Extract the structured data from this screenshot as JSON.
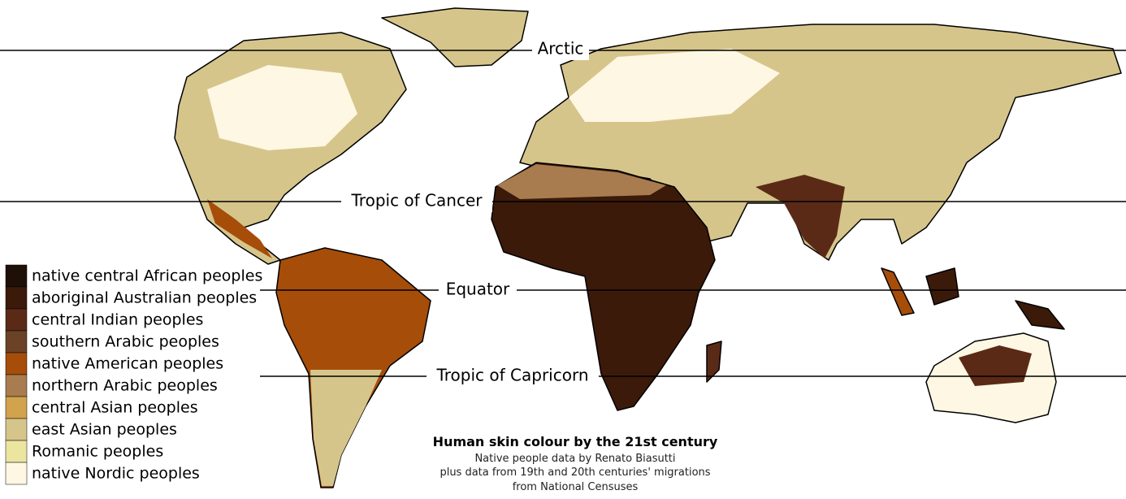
{
  "latitude_lines": [
    {
      "label": "Arctic"
    },
    {
      "label": "Tropic of Cancer"
    },
    {
      "label": "Equator"
    },
    {
      "label": "Tropic of Capricorn"
    }
  ],
  "legend": {
    "items": [
      {
        "label": "native central African peoples",
        "color": "#1e0f07"
      },
      {
        "label": "aboriginal Australian peoples",
        "color": "#3b1a0a"
      },
      {
        "label": "central Indian peoples",
        "color": "#5a2a17"
      },
      {
        "label": "southern Arabic peoples",
        "color": "#6b4226"
      },
      {
        "label": "native American peoples",
        "color": "#a64d0a"
      },
      {
        "label": "northern Arabic peoples",
        "color": "#a87c4f"
      },
      {
        "label": "central Asian peoples",
        "color": "#d3a24c"
      },
      {
        "label": "east Asian peoples",
        "color": "#d6c58b"
      },
      {
        "label": "Romanic peoples",
        "color": "#ece5a0"
      },
      {
        "label": "native Nordic peoples",
        "color": "#fdf7e3"
      }
    ]
  },
  "caption": {
    "title": "Human skin colour by the 21st century",
    "lines": [
      "Native people data by Renato Biasutti",
      "plus data from 19th and 20th centuries' migrations",
      "from National Censuses"
    ]
  }
}
